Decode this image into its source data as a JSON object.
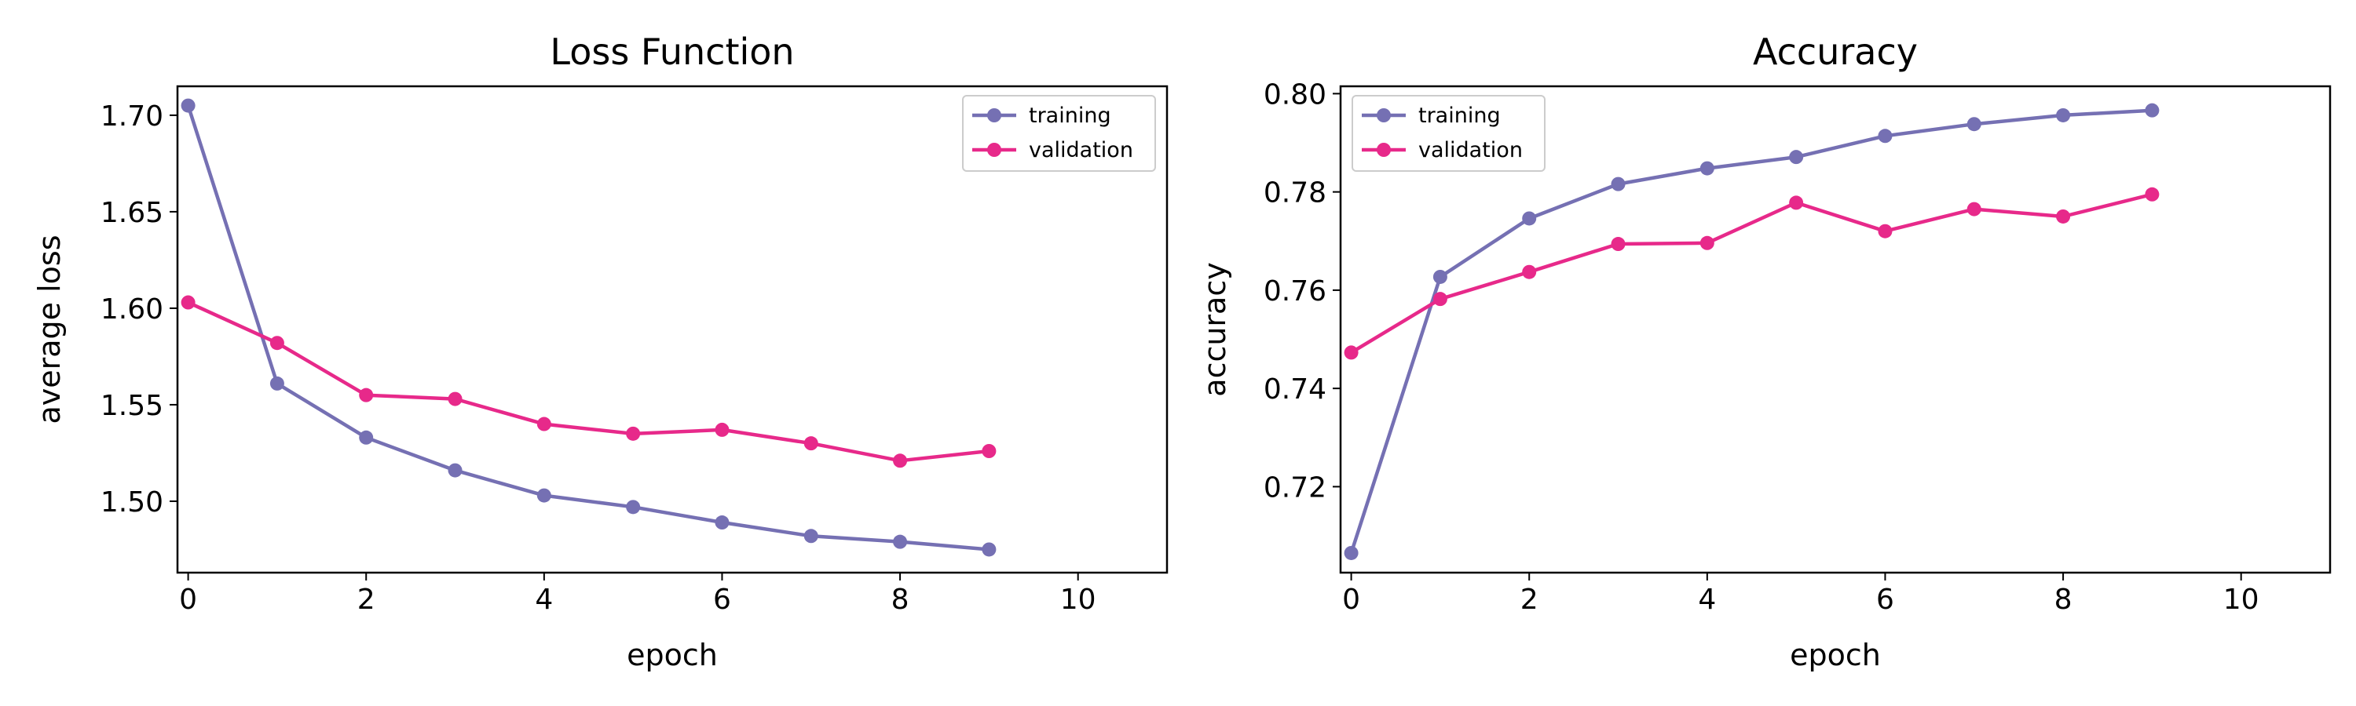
{
  "chart_data": [
    {
      "type": "line",
      "title": "Loss Function",
      "xlabel": "epoch",
      "ylabel": "average loss",
      "xlim": [
        -0.12,
        11
      ],
      "ylim": [
        1.463,
        1.715
      ],
      "xticks": [
        0,
        2,
        4,
        6,
        8,
        10
      ],
      "xtick_labels": [
        "0",
        "2",
        "4",
        "6",
        "8",
        "10"
      ],
      "yticks": [
        1.5,
        1.55,
        1.6,
        1.65,
        1.7
      ],
      "ytick_labels": [
        "1.50",
        "1.55",
        "1.60",
        "1.65",
        "1.70"
      ],
      "x": [
        0,
        1,
        2,
        3,
        4,
        5,
        6,
        7,
        8,
        9
      ],
      "grid": false,
      "legend_position": "top-right",
      "series": [
        {
          "name": "training",
          "color": "#7570b3",
          "values": [
            1.705,
            1.561,
            1.533,
            1.516,
            1.503,
            1.497,
            1.489,
            1.482,
            1.479,
            1.475
          ]
        },
        {
          "name": "validation",
          "color": "#e7298a",
          "values": [
            1.603,
            1.582,
            1.555,
            1.553,
            1.54,
            1.535,
            1.537,
            1.53,
            1.521,
            1.526
          ]
        }
      ]
    },
    {
      "type": "line",
      "title": "Accuracy",
      "xlabel": "epoch",
      "ylabel": "accuracy",
      "xlim": [
        -0.12,
        11
      ],
      "ylim": [
        0.7025,
        0.8015
      ],
      "xticks": [
        0,
        2,
        4,
        6,
        8,
        10
      ],
      "xtick_labels": [
        "0",
        "2",
        "4",
        "6",
        "8",
        "10"
      ],
      "yticks": [
        0.72,
        0.74,
        0.76,
        0.78,
        0.8
      ],
      "ytick_labels": [
        "0.72",
        "0.74",
        "0.76",
        "0.78",
        "0.80"
      ],
      "x": [
        0,
        1,
        2,
        3,
        4,
        5,
        6,
        7,
        8,
        9
      ],
      "grid": false,
      "legend_position": "top-left",
      "series": [
        {
          "name": "training",
          "color": "#7570b3",
          "values": [
            0.7065,
            0.7627,
            0.7746,
            0.7816,
            0.7848,
            0.7871,
            0.7914,
            0.7938,
            0.7956,
            0.7966
          ]
        },
        {
          "name": "validation",
          "color": "#e7298a",
          "values": [
            0.7473,
            0.7582,
            0.7637,
            0.7694,
            0.7696,
            0.7778,
            0.772,
            0.7765,
            0.775,
            0.7795
          ]
        }
      ]
    }
  ]
}
